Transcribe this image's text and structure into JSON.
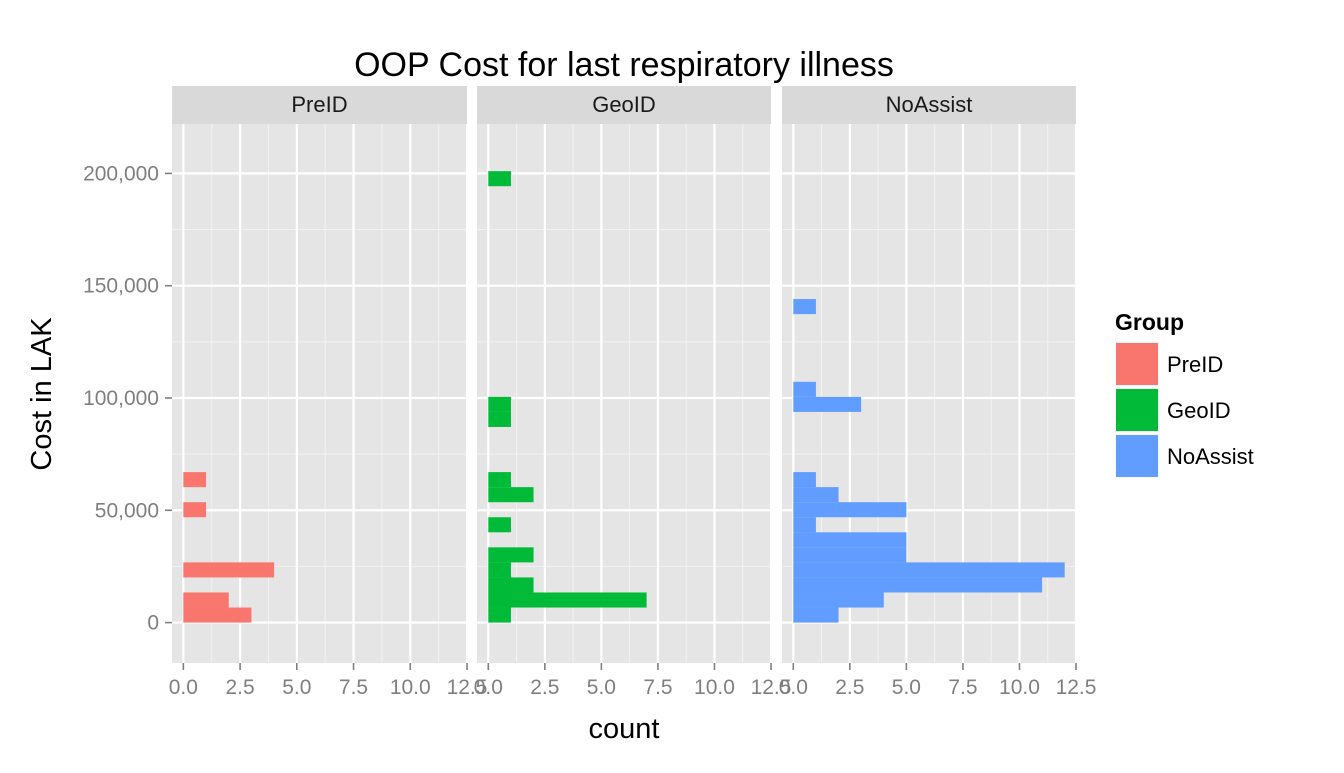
{
  "chart_data": {
    "type": "bar",
    "orientation": "horizontal",
    "title": "OOP Cost for last respiratory illness",
    "xlabel": "count",
    "ylabel": "Cost in LAK",
    "xlim": [
      -0.5,
      12.5
    ],
    "ylim": [
      -18000,
      222000
    ],
    "x_ticks": [
      0,
      2.5,
      5,
      7.5,
      10,
      12.5
    ],
    "x_tick_labels": [
      "0.0",
      "2.5",
      "5.0",
      "7.5",
      "10.0",
      "12.5"
    ],
    "y_ticks": [
      0,
      50000,
      100000,
      150000,
      200000
    ],
    "y_tick_labels": [
      "0",
      "50,000",
      "100,000",
      "150,000",
      "200,000"
    ],
    "bin_width": 6700,
    "grid": true,
    "legend": {
      "title": "Group",
      "position": "right"
    },
    "series": [
      {
        "name": "PreID",
        "color": "#F8766D",
        "bins": [
          {
            "y": 3350,
            "count": 3
          },
          {
            "y": 10050,
            "count": 2
          },
          {
            "y": 23450,
            "count": 4
          },
          {
            "y": 50250,
            "count": 1
          },
          {
            "y": 63650,
            "count": 1
          }
        ]
      },
      {
        "name": "GeoID",
        "color": "#00BA38",
        "bins": [
          {
            "y": 3350,
            "count": 1
          },
          {
            "y": 10050,
            "count": 7
          },
          {
            "y": 16750,
            "count": 2
          },
          {
            "y": 23450,
            "count": 1
          },
          {
            "y": 30150,
            "count": 2
          },
          {
            "y": 43550,
            "count": 1
          },
          {
            "y": 56950,
            "count": 2
          },
          {
            "y": 63650,
            "count": 1
          },
          {
            "y": 90450,
            "count": 1
          },
          {
            "y": 97150,
            "count": 1
          },
          {
            "y": 197650,
            "count": 1
          }
        ]
      },
      {
        "name": "NoAssist",
        "color": "#619CFF",
        "bins": [
          {
            "y": 3350,
            "count": 2
          },
          {
            "y": 10050,
            "count": 4
          },
          {
            "y": 16750,
            "count": 11
          },
          {
            "y": 23450,
            "count": 12
          },
          {
            "y": 30150,
            "count": 5
          },
          {
            "y": 36850,
            "count": 5
          },
          {
            "y": 43550,
            "count": 1
          },
          {
            "y": 50250,
            "count": 5
          },
          {
            "y": 56950,
            "count": 2
          },
          {
            "y": 63650,
            "count": 1
          },
          {
            "y": 97150,
            "count": 3
          },
          {
            "y": 103850,
            "count": 1
          },
          {
            "y": 140700,
            "count": 1
          }
        ]
      }
    ]
  }
}
